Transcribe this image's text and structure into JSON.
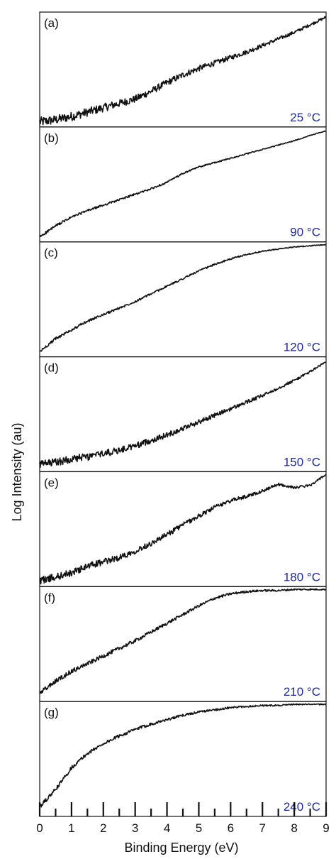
{
  "chart_data": {
    "type": "line",
    "xlabel": "Binding Energy (eV)",
    "ylabel": "Log Intensity (au)",
    "xlim": [
      0,
      9
    ],
    "x_ticks": [
      "0",
      "1",
      "2",
      "3",
      "4",
      "5",
      "6",
      "7",
      "8",
      "9"
    ],
    "panels": [
      {
        "label": "(a)",
        "temperature": "25 °C",
        "x": [
          0,
          0.5,
          1,
          1.5,
          2,
          2.5,
          3,
          3.5,
          4,
          4.5,
          5,
          5.5,
          6,
          6.5,
          7,
          7.5,
          8,
          8.5,
          9
        ],
        "y": [
          0.02,
          0.04,
          0.07,
          0.11,
          0.15,
          0.19,
          0.23,
          0.3,
          0.38,
          0.45,
          0.51,
          0.56,
          0.61,
          0.66,
          0.72,
          0.78,
          0.84,
          0.91,
          0.98
        ],
        "noise": 0.045
      },
      {
        "label": "(b)",
        "temperature": "90 °C",
        "x": [
          0,
          0.5,
          1,
          1.5,
          2,
          2.5,
          3,
          3.5,
          4,
          4.5,
          5,
          5.5,
          6,
          6.5,
          7,
          7.5,
          8,
          8.5,
          9
        ],
        "y": [
          0.02,
          0.12,
          0.2,
          0.26,
          0.31,
          0.36,
          0.41,
          0.46,
          0.52,
          0.6,
          0.66,
          0.7,
          0.74,
          0.78,
          0.82,
          0.86,
          0.9,
          0.95,
          0.99
        ],
        "noise": 0.012
      },
      {
        "label": "(c)",
        "temperature": "120 °C",
        "x": [
          0,
          0.5,
          1,
          1.5,
          2,
          2.5,
          3,
          3.5,
          4,
          4.5,
          5,
          5.5,
          6,
          6.5,
          7,
          7.5,
          8,
          8.5,
          9
        ],
        "y": [
          0.02,
          0.14,
          0.22,
          0.3,
          0.36,
          0.42,
          0.48,
          0.55,
          0.62,
          0.69,
          0.76,
          0.82,
          0.87,
          0.91,
          0.94,
          0.96,
          0.98,
          0.99,
          1.0
        ],
        "noise": 0.013
      },
      {
        "label": "(d)",
        "temperature": "150 °C",
        "x": [
          0,
          0.5,
          1,
          1.5,
          2,
          2.5,
          3,
          3.5,
          4,
          4.5,
          5,
          5.5,
          6,
          6.5,
          7,
          7.5,
          8,
          8.5,
          9
        ],
        "y": [
          0.04,
          0.06,
          0.09,
          0.11,
          0.14,
          0.17,
          0.21,
          0.26,
          0.31,
          0.37,
          0.43,
          0.49,
          0.55,
          0.61,
          0.67,
          0.74,
          0.81,
          0.89,
          0.98
        ],
        "noise": 0.038
      },
      {
        "label": "(e)",
        "temperature": "180 °C",
        "x": [
          0,
          0.5,
          1,
          1.5,
          2,
          2.5,
          3,
          3.5,
          4,
          4.5,
          5,
          5.5,
          6,
          6.5,
          7,
          7.5,
          8,
          8.5,
          9
        ],
        "y": [
          0.03,
          0.06,
          0.1,
          0.16,
          0.2,
          0.24,
          0.3,
          0.37,
          0.45,
          0.54,
          0.62,
          0.7,
          0.76,
          0.8,
          0.85,
          0.91,
          0.88,
          0.9,
          1.0
        ],
        "noise": 0.035
      },
      {
        "label": "(f)",
        "temperature": "210 °C",
        "x": [
          0,
          0.5,
          1,
          1.5,
          2,
          2.5,
          3,
          3.5,
          4,
          4.5,
          5,
          5.5,
          6,
          6.5,
          7,
          7.5,
          8,
          8.5,
          9
        ],
        "y": [
          0.05,
          0.16,
          0.25,
          0.32,
          0.39,
          0.46,
          0.53,
          0.61,
          0.69,
          0.77,
          0.85,
          0.92,
          0.96,
          0.98,
          0.99,
          0.99,
          1.0,
          1.0,
          1.0
        ],
        "noise": 0.022
      },
      {
        "label": "(g)",
        "temperature": "240 °C",
        "x": [
          0,
          0.5,
          1,
          1.5,
          2,
          2.5,
          3,
          3.5,
          4,
          4.5,
          5,
          5.5,
          6,
          6.5,
          7,
          7.5,
          8,
          8.5,
          9
        ],
        "y": [
          0.06,
          0.22,
          0.42,
          0.55,
          0.64,
          0.71,
          0.77,
          0.82,
          0.86,
          0.9,
          0.93,
          0.95,
          0.97,
          0.98,
          0.99,
          0.99,
          1.0,
          1.0,
          1.0
        ],
        "noise": 0.018
      }
    ]
  }
}
